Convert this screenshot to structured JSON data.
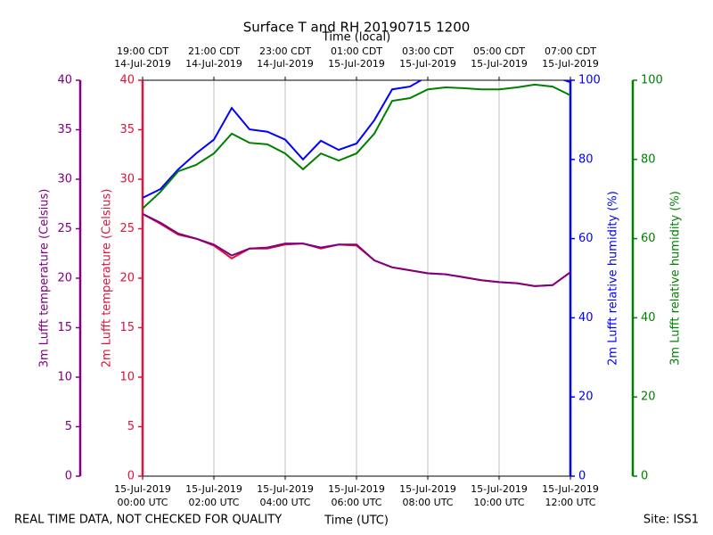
{
  "chart_data": {
    "type": "line",
    "title": "Surface T and RH 20190715 1200",
    "xlabel": "Time (UTC)",
    "x2label": "Time (local)",
    "footer_left": "REAL TIME DATA, NOT CHECKED FOR QUALITY",
    "footer_right": "Site: ISS1",
    "grid": true,
    "xlim": [
      "2019-07-15 00:00",
      "2019-07-15 12:00"
    ],
    "xticks": [
      {
        "value": "2019-07-15 00:00",
        "label": [
          "15-Jul-2019",
          "00:00 UTC"
        ]
      },
      {
        "value": "2019-07-15 02:00",
        "label": [
          "15-Jul-2019",
          "02:00 UTC"
        ]
      },
      {
        "value": "2019-07-15 04:00",
        "label": [
          "15-Jul-2019",
          "04:00 UTC"
        ]
      },
      {
        "value": "2019-07-15 06:00",
        "label": [
          "15-Jul-2019",
          "06:00 UTC"
        ]
      },
      {
        "value": "2019-07-15 08:00",
        "label": [
          "15-Jul-2019",
          "08:00 UTC"
        ]
      },
      {
        "value": "2019-07-15 10:00",
        "label": [
          "15-Jul-2019",
          "10:00 UTC"
        ]
      },
      {
        "value": "2019-07-15 12:00",
        "label": [
          "15-Jul-2019",
          "12:00 UTC"
        ]
      }
    ],
    "x2lim": [
      "2019-07-14 19:00",
      "2019-07-15 07:00"
    ],
    "x2ticks": [
      {
        "value": "2019-07-14 19:00",
        "label": [
          "19:00 CDT",
          "14-Jul-2019"
        ]
      },
      {
        "value": "2019-07-14 21:00",
        "label": [
          "21:00 CDT",
          "14-Jul-2019"
        ]
      },
      {
        "value": "2019-07-14 23:00",
        "label": [
          "23:00 CDT",
          "14-Jul-2019"
        ]
      },
      {
        "value": "2019-07-15 01:00",
        "label": [
          "01:00 CDT",
          "15-Jul-2019"
        ]
      },
      {
        "value": "2019-07-15 03:00",
        "label": [
          "03:00 CDT",
          "15-Jul-2019"
        ]
      },
      {
        "value": "2019-07-15 05:00",
        "label": [
          "05:00 CDT",
          "15-Jul-2019"
        ]
      },
      {
        "value": "2019-07-15 07:00",
        "label": [
          "07:00 CDT",
          "15-Jul-2019"
        ]
      }
    ],
    "y_axes": [
      {
        "label": "3m Lufft temperature (Celsius)",
        "color": "#800080",
        "side": "left",
        "lim": [
          0,
          40
        ],
        "ticks": [
          0,
          5,
          10,
          15,
          20,
          25,
          30,
          35,
          40
        ]
      },
      {
        "label": "2m Lufft temperature (Celsius)",
        "color": "#dc143c",
        "side": "left",
        "lim": [
          0,
          40
        ],
        "ticks": [
          0,
          5,
          10,
          15,
          20,
          25,
          30,
          35,
          40
        ]
      },
      {
        "label": "2m Lufft relative humidity (%)",
        "color": "#0000ff",
        "side": "right",
        "lim": [
          0,
          100
        ],
        "ticks": [
          0,
          20,
          40,
          60,
          80,
          100
        ]
      },
      {
        "label": "3m Lufft relative humidity (%)",
        "color": "#008000",
        "side": "right",
        "lim": [
          0,
          100
        ],
        "ticks": [
          0,
          20,
          40,
          60,
          80,
          100
        ]
      }
    ],
    "x": [
      "2019-07-15 00:00",
      "2019-07-15 00:30",
      "2019-07-15 01:00",
      "2019-07-15 01:30",
      "2019-07-15 02:00",
      "2019-07-15 02:30",
      "2019-07-15 03:00",
      "2019-07-15 03:30",
      "2019-07-15 04:00",
      "2019-07-15 04:30",
      "2019-07-15 05:00",
      "2019-07-15 05:30",
      "2019-07-15 06:00",
      "2019-07-15 06:30",
      "2019-07-15 07:00",
      "2019-07-15 07:30",
      "2019-07-15 08:00",
      "2019-07-15 08:30",
      "2019-07-15 09:00",
      "2019-07-15 09:30",
      "2019-07-15 10:00",
      "2019-07-15 10:30",
      "2019-07-15 11:00",
      "2019-07-15 11:30",
      "2019-07-15 12:00"
    ],
    "series": [
      {
        "color": "#dc143c",
        "axis": 1,
        "values": [
          26.5,
          25.5,
          24.4,
          24.0,
          23.3,
          22.0,
          23.0,
          23.0,
          23.4,
          23.5,
          23.0,
          23.4,
          23.3,
          21.8,
          21.1,
          20.8,
          20.5,
          20.4,
          20.1,
          19.8,
          19.6,
          19.5,
          19.2,
          19.3,
          20.6
        ]
      },
      {
        "color": "#800080",
        "axis": 0,
        "values": [
          26.5,
          25.6,
          24.5,
          24.0,
          23.4,
          22.3,
          23.0,
          23.1,
          23.5,
          23.5,
          23.1,
          23.4,
          23.4,
          21.8,
          21.1,
          20.8,
          20.5,
          20.4,
          20.1,
          19.8,
          19.6,
          19.5,
          19.2,
          19.3,
          20.6
        ]
      },
      {
        "color": "#0000ff",
        "axis": 2,
        "values": [
          70.3,
          72.5,
          77.5,
          81.5,
          85.0,
          93.0,
          87.6,
          87.0,
          85.0,
          80.0,
          84.7,
          82.4,
          84.0,
          89.9,
          97.7,
          98.4,
          101,
          101,
          101,
          101,
          101,
          101,
          101,
          101,
          99.5
        ]
      },
      {
        "color": "#008000",
        "axis": 3,
        "values": [
          67.6,
          71.8,
          77.0,
          78.6,
          81.5,
          86.5,
          84.2,
          83.8,
          81.5,
          77.5,
          81.5,
          79.7,
          81.5,
          86.5,
          94.8,
          95.5,
          97.7,
          98.2,
          98.0,
          97.7,
          97.7,
          98.2,
          98.9,
          98.4,
          96.2
        ]
      }
    ]
  }
}
